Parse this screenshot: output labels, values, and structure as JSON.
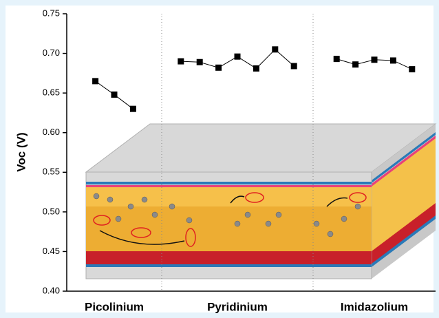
{
  "chart_data": {
    "type": "dot-line",
    "y_label": "Voc (V)",
    "ylim": [
      0.4,
      0.75
    ],
    "yticks": [
      {
        "value": 0.4,
        "label": "0.40"
      },
      0.45,
      {
        "value": 0.5,
        "label": "0.50"
      },
      0.55,
      {
        "value": 0.6,
        "label": "0.60"
      },
      0.65,
      {
        "value": 0.7,
        "label": "0.70"
      },
      0.75
    ],
    "color": "#000000",
    "groups": [
      {
        "label": "Picolinium",
        "values": [
          0.665,
          0.648,
          0.63
        ]
      },
      {
        "label": "Pyridinium",
        "values": [
          0.69,
          0.689,
          0.682,
          0.696,
          0.681,
          0.705,
          0.684
        ]
      },
      {
        "label": "Imidazolium",
        "values": [
          0.693,
          0.686,
          0.692,
          0.691,
          0.68
        ]
      }
    ]
  }
}
